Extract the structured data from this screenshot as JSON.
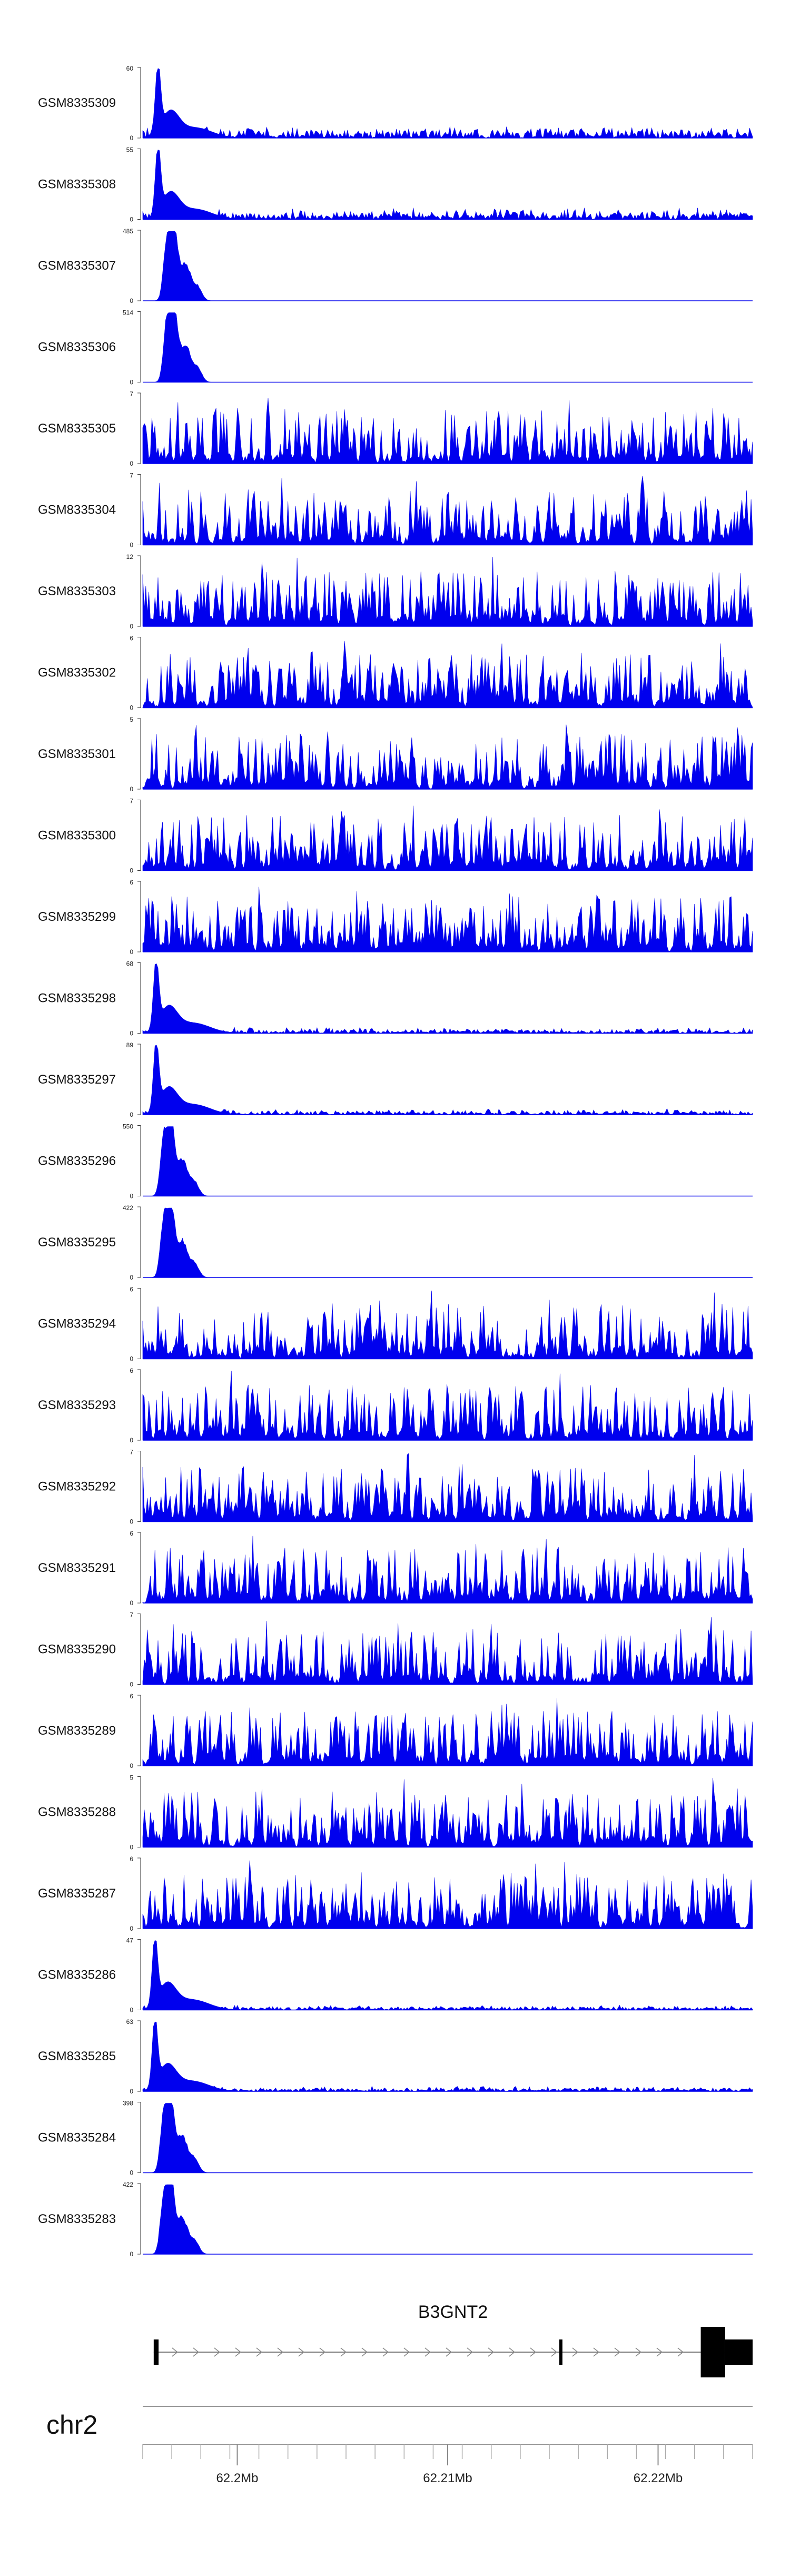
{
  "chart_data": {
    "type": "area",
    "series_color": "#0000ee",
    "tracks": [
      {
        "name": "GSM8335309",
        "ymax": "60",
        "ymin": "0",
        "profile": "sharp",
        "peak_pos": 0.025,
        "noise": 0.12,
        "seed": 309
      },
      {
        "name": "GSM8335308",
        "ymax": "55",
        "ymin": "0",
        "profile": "sharp",
        "peak_pos": 0.025,
        "noise": 0.12,
        "seed": 308
      },
      {
        "name": "GSM8335307",
        "ymax": "485",
        "ymin": "0",
        "profile": "broad",
        "peak_pos": 0.04,
        "noise": 0.0,
        "seed": 307
      },
      {
        "name": "GSM8335306",
        "ymax": "514",
        "ymin": "0",
        "profile": "broad",
        "peak_pos": 0.04,
        "noise": 0.0,
        "seed": 306
      },
      {
        "name": "GSM8335305",
        "ymax": "7",
        "ymin": "0",
        "profile": "noise",
        "seed": 305
      },
      {
        "name": "GSM8335304",
        "ymax": "7",
        "ymin": "0",
        "profile": "noise",
        "seed": 304
      },
      {
        "name": "GSM8335303",
        "ymax": "12",
        "ymin": "0",
        "profile": "noise",
        "seed": 303
      },
      {
        "name": "GSM8335302",
        "ymax": "6",
        "ymin": "0",
        "profile": "noise",
        "seed": 302
      },
      {
        "name": "GSM8335301",
        "ymax": "5",
        "ymin": "0",
        "profile": "noise",
        "seed": 301
      },
      {
        "name": "GSM8335300",
        "ymax": "7",
        "ymin": "0",
        "profile": "noise",
        "seed": 300
      },
      {
        "name": "GSM8335299",
        "ymax": "6",
        "ymin": "0",
        "profile": "noise",
        "seed": 299
      },
      {
        "name": "GSM8335298",
        "ymax": "68",
        "ymin": "0",
        "profile": "sharp",
        "peak_pos": 0.022,
        "noise": 0.06,
        "seed": 298
      },
      {
        "name": "GSM8335297",
        "ymax": "89",
        "ymin": "0",
        "profile": "sharp",
        "peak_pos": 0.022,
        "noise": 0.06,
        "seed": 297
      },
      {
        "name": "GSM8335296",
        "ymax": "550",
        "ymin": "0",
        "profile": "broad",
        "peak_pos": 0.035,
        "noise": 0.0,
        "seed": 296
      },
      {
        "name": "GSM8335295",
        "ymax": "422",
        "ymin": "0",
        "profile": "broad",
        "peak_pos": 0.035,
        "noise": 0.0,
        "seed": 295
      },
      {
        "name": "GSM8335294",
        "ymax": "6",
        "ymin": "0",
        "profile": "noise",
        "seed": 294
      },
      {
        "name": "GSM8335293",
        "ymax": "6",
        "ymin": "0",
        "profile": "noise",
        "seed": 293
      },
      {
        "name": "GSM8335292",
        "ymax": "7",
        "ymin": "0",
        "profile": "noise",
        "seed": 292
      },
      {
        "name": "GSM8335291",
        "ymax": "6",
        "ymin": "0",
        "profile": "noise",
        "seed": 291
      },
      {
        "name": "GSM8335290",
        "ymax": "7",
        "ymin": "0",
        "profile": "noise",
        "seed": 290
      },
      {
        "name": "GSM8335289",
        "ymax": "6",
        "ymin": "0",
        "profile": "noise",
        "seed": 289
      },
      {
        "name": "GSM8335288",
        "ymax": "5",
        "ymin": "0",
        "profile": "noise",
        "seed": 288
      },
      {
        "name": "GSM8335287",
        "ymax": "6",
        "ymin": "0",
        "profile": "noise",
        "seed": 287
      },
      {
        "name": "GSM8335286",
        "ymax": "47",
        "ymin": "0",
        "profile": "sharp",
        "peak_pos": 0.02,
        "noise": 0.05,
        "seed": 286
      },
      {
        "name": "GSM8335285",
        "ymax": "63",
        "ymin": "0",
        "profile": "sharp",
        "peak_pos": 0.02,
        "noise": 0.05,
        "seed": 285
      },
      {
        "name": "GSM8335284",
        "ymax": "398",
        "ymin": "0",
        "profile": "broad",
        "peak_pos": 0.035,
        "noise": 0.0,
        "seed": 284
      },
      {
        "name": "GSM8335283",
        "ymax": "422",
        "ymin": "0",
        "profile": "broad",
        "peak_pos": 0.035,
        "noise": 0.0,
        "seed": 283
      }
    ],
    "gene": {
      "name": "B3GNT2",
      "strand": "+",
      "exons": [
        {
          "start": 0.018,
          "end": 0.026,
          "thick": false
        },
        {
          "start": 0.683,
          "end": 0.688,
          "thick": false
        },
        {
          "start": 0.915,
          "end": 0.955,
          "thick": false
        },
        {
          "start": 0.955,
          "end": 1.0,
          "thick": true
        }
      ]
    },
    "chromosome": "chr2",
    "x_axis": {
      "tick_labels": [
        "62.2Mb",
        "62.21Mb",
        "62.22Mb"
      ],
      "labeled_tick_fractions": [
        0.155,
        0.5,
        0.845
      ],
      "minor_tick_count": 21
    }
  }
}
